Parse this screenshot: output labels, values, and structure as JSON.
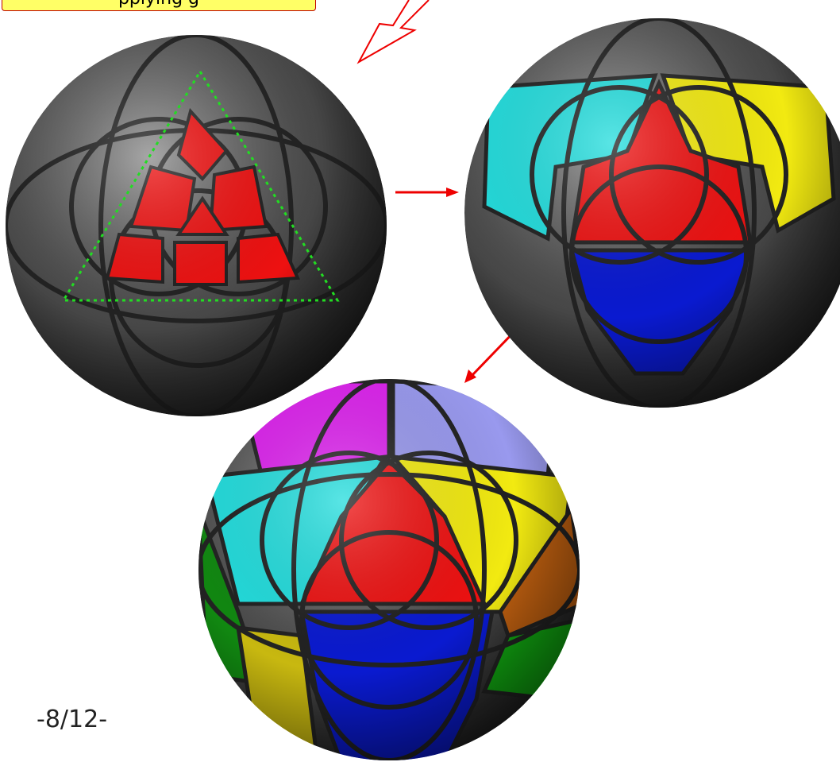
{
  "header": {
    "callout": "pplying g"
  },
  "footer": {
    "page_number": "-8/12-"
  }
}
